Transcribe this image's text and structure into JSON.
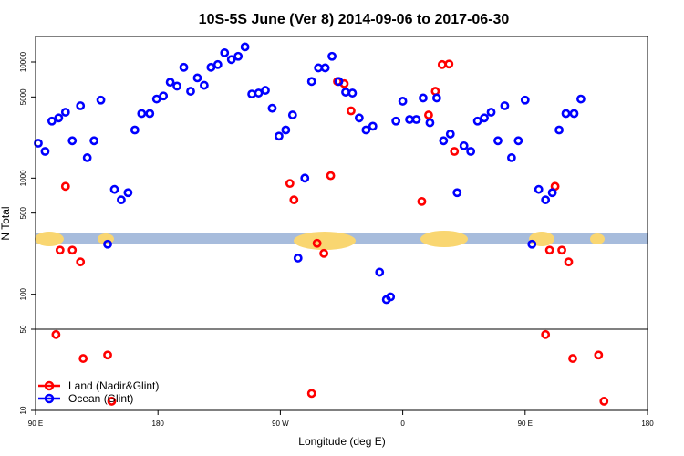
{
  "chart_data": {
    "type": "scatter",
    "title": "10S-5S June (Ver 8)   2014-09-06 to 2017-06-30",
    "xlabel": "Longitude (deg E)",
    "ylabel": "N Total",
    "y_scale": "log",
    "x_ticks": [
      {
        "value": 90,
        "label": "90 E"
      },
      {
        "value": 180,
        "label": "180"
      },
      {
        "value": 270,
        "label": "90 W"
      },
      {
        "value": 360,
        "label": "0"
      },
      {
        "value": 450,
        "label": "90 E"
      },
      {
        "value": 540,
        "label": "180"
      }
    ],
    "xlim": [
      90,
      540
    ],
    "y_ticks": [
      {
        "value": 10,
        "label": "10"
      },
      {
        "value": 50,
        "label": "50"
      },
      {
        "value": 100,
        "label": "100"
      },
      {
        "value": 500,
        "label": "500"
      },
      {
        "value": 1000,
        "label": "1000"
      },
      {
        "value": 5000,
        "label": "5000"
      },
      {
        "value": 10000,
        "label": "10000"
      }
    ],
    "ylim": [
      10,
      20000
    ],
    "reference_line_y": 50,
    "colors": {
      "land": "#ff0000",
      "ocean": "#0000ff",
      "map_ocean": "#a7bcdc",
      "map_land": "#f9d671"
    },
    "legend_position": "bottom-left",
    "series": [
      {
        "name": "Land (Nadir&Glint)",
        "color": "#ff0000",
        "points": [
          [
            105,
            45
          ],
          [
            108,
            240
          ],
          [
            112,
            850
          ],
          [
            117,
            240
          ],
          [
            123,
            190
          ],
          [
            125,
            28
          ],
          [
            143,
            30
          ],
          [
            146,
            12
          ],
          [
            277,
            900
          ],
          [
            280,
            650
          ],
          [
            293,
            14
          ],
          [
            297,
            275
          ],
          [
            302,
            225
          ],
          [
            307,
            1050
          ],
          [
            312,
            6800
          ],
          [
            317,
            6500
          ],
          [
            322,
            3800
          ],
          [
            374,
            630
          ],
          [
            379,
            3500
          ],
          [
            384,
            5600
          ],
          [
            389,
            9500
          ],
          [
            394,
            9600
          ],
          [
            398,
            1700
          ],
          [
            465,
            45
          ],
          [
            468,
            240
          ],
          [
            472,
            850
          ],
          [
            477,
            240
          ],
          [
            482,
            190
          ],
          [
            485,
            28
          ],
          [
            504,
            30
          ],
          [
            508,
            12
          ]
        ]
      },
      {
        "name": "Ocean (Glint)",
        "color": "#0000ff",
        "points": [
          [
            92,
            2000
          ],
          [
            97,
            1700
          ],
          [
            102,
            3100
          ],
          [
            107,
            3300
          ],
          [
            112,
            3700
          ],
          [
            117,
            2100
          ],
          [
            123,
            4200
          ],
          [
            128,
            1500
          ],
          [
            133,
            2100
          ],
          [
            138,
            4700
          ],
          [
            143,
            270
          ],
          [
            148,
            800
          ],
          [
            153,
            650
          ],
          [
            158,
            750
          ],
          [
            163,
            2600
          ],
          [
            168,
            3600
          ],
          [
            174,
            3600
          ],
          [
            179,
            4800
          ],
          [
            184,
            5100
          ],
          [
            189,
            6700
          ],
          [
            194,
            6200
          ],
          [
            199,
            9000
          ],
          [
            204,
            5600
          ],
          [
            209,
            7300
          ],
          [
            214,
            6300
          ],
          [
            219,
            9000
          ],
          [
            224,
            9500
          ],
          [
            229,
            12000
          ],
          [
            234,
            10500
          ],
          [
            239,
            11200
          ],
          [
            244,
            13500
          ],
          [
            249,
            5300
          ],
          [
            254,
            5400
          ],
          [
            259,
            5700
          ],
          [
            264,
            4000
          ],
          [
            269,
            2300
          ],
          [
            274,
            2600
          ],
          [
            279,
            3500
          ],
          [
            283,
            205
          ],
          [
            288,
            1000
          ],
          [
            293,
            6800
          ],
          [
            298,
            8900
          ],
          [
            303,
            8900
          ],
          [
            308,
            11200
          ],
          [
            313,
            6800
          ],
          [
            318,
            5500
          ],
          [
            323,
            5400
          ],
          [
            328,
            3300
          ],
          [
            333,
            2600
          ],
          [
            338,
            2800
          ],
          [
            343,
            155
          ],
          [
            348,
            90
          ],
          [
            351,
            95
          ],
          [
            355,
            3100
          ],
          [
            360,
            4600
          ],
          [
            365,
            3200
          ],
          [
            370,
            3200
          ],
          [
            375,
            4900
          ],
          [
            380,
            3000
          ],
          [
            385,
            4900
          ],
          [
            390,
            2100
          ],
          [
            395,
            2400
          ],
          [
            400,
            750
          ],
          [
            405,
            1900
          ],
          [
            410,
            1700
          ],
          [
            415,
            3100
          ],
          [
            420,
            3300
          ],
          [
            425,
            3700
          ],
          [
            430,
            2100
          ],
          [
            435,
            4200
          ],
          [
            440,
            1500
          ],
          [
            445,
            2100
          ],
          [
            450,
            4700
          ],
          [
            455,
            270
          ],
          [
            460,
            800
          ],
          [
            465,
            650
          ],
          [
            470,
            750
          ],
          [
            475,
            2600
          ],
          [
            480,
            3600
          ],
          [
            486,
            3600
          ],
          [
            491,
            4800
          ]
        ]
      }
    ]
  }
}
